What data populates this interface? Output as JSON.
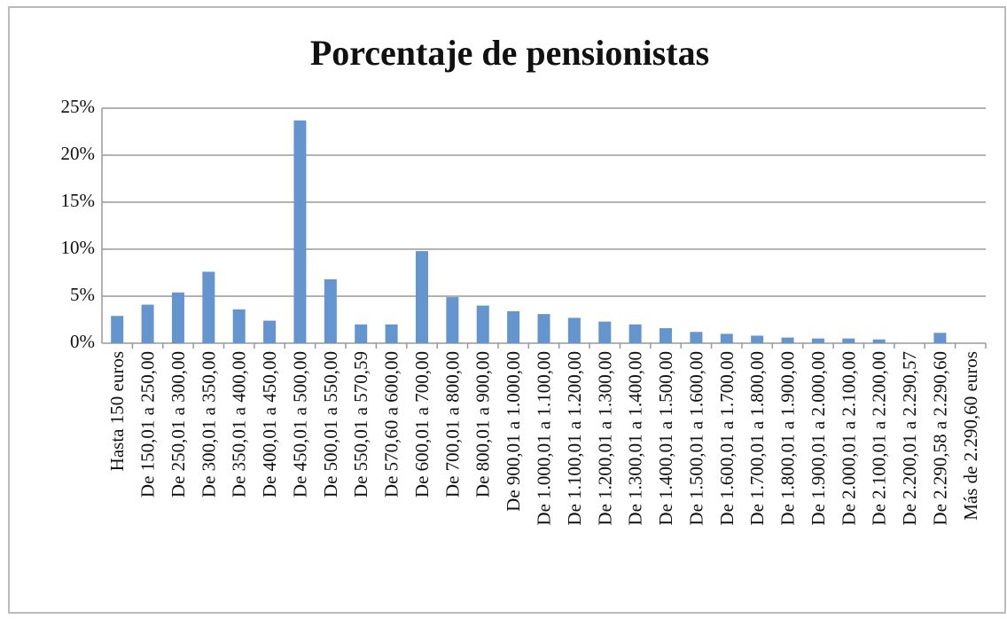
{
  "chart_data": {
    "type": "bar",
    "title": "Porcentaje de pensionistas",
    "categories": [
      "Hasta 150 euros",
      "De 150,01 a 250,00",
      "De 250,01 a 300,00",
      "De 300,01 a 350,00",
      "De 350,01 a 400,00",
      "De 400,01 a 450,00",
      "De 450,01 a 500,00",
      "De 500,01 a 550,00",
      "De 550,01 a 570,59",
      "De 570,60 a 600,00",
      "De 600,01 a 700,00",
      "De 700,01 a 800,00",
      "De 800,01 a 900,00",
      "De 900,01 a 1.000,00",
      "De 1.000,01 a 1.100,00",
      "De 1.100,01 a 1.200,00",
      "De 1.200,01 a 1.300,00",
      "De 1.300,01 a 1.400,00",
      "De 1.400,01 a 1.500,00",
      "De 1.500,01 a 1.600,00",
      "De 1.600,01 a 1.700,00",
      "De 1.700,01 a 1.800,00",
      "De 1.800,01 a 1.900,00",
      "De 1.900,01 a 2.000,00",
      "De 2.000,01 a 2.100,00",
      "De 2.100,01 a 2.200,00",
      "De 2.200,01 a 2.290,57",
      "De 2.290,58 a 2.290,60",
      "Más de 2.290,60 euros"
    ],
    "values": [
      2.9,
      4.1,
      5.4,
      7.6,
      3.6,
      2.4,
      23.7,
      6.8,
      2.0,
      2.0,
      9.8,
      4.9,
      4.0,
      3.4,
      3.1,
      2.7,
      2.3,
      2.0,
      1.6,
      1.2,
      1.0,
      0.8,
      0.6,
      0.5,
      0.5,
      0.4,
      0,
      1.1,
      0
    ],
    "color": "#6495cf",
    "ylim": [
      0,
      25
    ],
    "yticks": [
      {
        "value": 0,
        "label": "0%"
      },
      {
        "value": 5,
        "label": "5%"
      },
      {
        "value": 10,
        "label": "10%"
      },
      {
        "value": 15,
        "label": "15%"
      },
      {
        "value": 20,
        "label": "20%"
      },
      {
        "value": 25,
        "label": "25%"
      }
    ],
    "grid": true
  }
}
